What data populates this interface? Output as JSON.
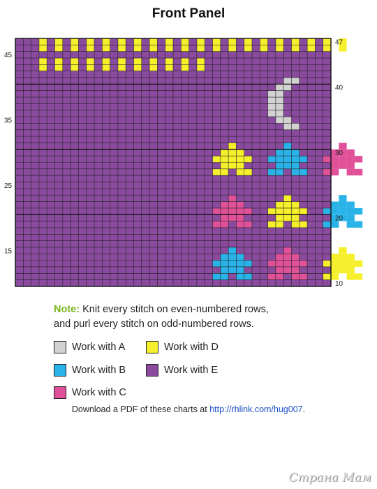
{
  "title": "Front Panel",
  "colors": {
    "A": "#d2d2d2",
    "B": "#29b3e8",
    "C": "#e0519a",
    "D": "#f5ef2c",
    "E": "#8a4a9e",
    "grid": "#222222"
  },
  "chart": {
    "columns": 40,
    "rows": 38,
    "first_row": 10,
    "last_row": 47,
    "row_labels_left": [
      "45",
      "35",
      "25",
      "15"
    ],
    "row_labels_right": [
      "47",
      "40",
      "30",
      "20",
      "10"
    ],
    "major_rows": [
      40,
      30,
      20
    ]
  },
  "motifs": {
    "yellow_row_47_cols": [
      4,
      6,
      8,
      10,
      12,
      14,
      16,
      18,
      20,
      22,
      24,
      26,
      28,
      30,
      32,
      34,
      36,
      38,
      40,
      42
    ],
    "yellow_row_44_cols": [
      4,
      6,
      8,
      10,
      12,
      14,
      16,
      18,
      20,
      22,
      24
    ],
    "moon_color": "A",
    "stars": [
      {
        "color": "D",
        "row": 27,
        "col": 26
      },
      {
        "color": "B",
        "row": 27,
        "col": 33
      },
      {
        "color": "C",
        "row": 27,
        "col": 40
      },
      {
        "color": "C",
        "row": 19,
        "col": 26
      },
      {
        "color": "D",
        "row": 19,
        "col": 33
      },
      {
        "color": "B",
        "row": 19,
        "col": 40
      },
      {
        "color": "B",
        "row": 11,
        "col": 26
      },
      {
        "color": "C",
        "row": 11,
        "col": 33
      },
      {
        "color": "D",
        "row": 11,
        "col": 40
      }
    ]
  },
  "note": {
    "label": "Note:",
    "line1": "Knit every stitch on even-numbered rows,",
    "line2": "and purl every stitch on odd-numbered rows."
  },
  "legend": [
    {
      "key": "A",
      "label": "Work with A"
    },
    {
      "key": "D",
      "label": "Work with D"
    },
    {
      "key": "B",
      "label": "Work with B"
    },
    {
      "key": "E",
      "label": "Work with E"
    },
    {
      "key": "C",
      "label": "Work with C"
    }
  ],
  "download": {
    "prefix": "Download a PDF of these charts at ",
    "link": "http://rhlink.com/hug007",
    "suffix": "."
  },
  "watermark": "Страна Мам"
}
